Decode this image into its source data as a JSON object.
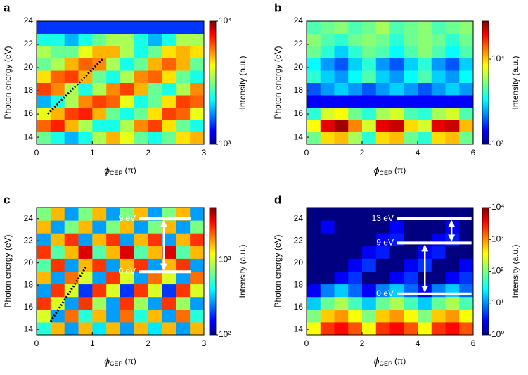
{
  "chart_data": [
    {
      "type": "heatmap",
      "label": "a",
      "ylabel": "Photon energy (eV)",
      "xlabel": {
        "symbol": "ϕ",
        "subscript": "CEP",
        "unit": "(π)"
      },
      "xlim": [
        0,
        3
      ],
      "xticks": [
        0,
        1,
        2,
        3
      ],
      "ylim": [
        13.4,
        24
      ],
      "yticks": [
        14,
        16,
        18,
        20,
        22,
        24
      ],
      "zlim": [
        1000,
        10000
      ],
      "zticks": [
        {
          "value": 1000,
          "label": "10³"
        },
        {
          "value": 10000,
          "label": "10⁴"
        }
      ],
      "log_color": true,
      "colorbar_label": "Intensity (a.u.)",
      "z": [
        [
          3000,
          2500,
          2000,
          2500,
          3500,
          5000,
          4000,
          3000,
          2500,
          3000,
          4500,
          5000
        ],
        [
          6000,
          7000,
          5000,
          3500,
          2500,
          2500,
          3500,
          5500,
          6500,
          4500,
          3000,
          2500
        ],
        [
          4000,
          5000,
          6500,
          7000,
          5000,
          3000,
          2500,
          3000,
          4500,
          6500,
          6000,
          4000
        ],
        [
          2000,
          2500,
          3500,
          5500,
          6500,
          6000,
          4000,
          2500,
          3000,
          4500,
          6500,
          6000
        ],
        [
          6500,
          5500,
          3500,
          2500,
          3500,
          5500,
          6500,
          5000,
          3000,
          2500,
          3500,
          5500
        ],
        [
          4500,
          6000,
          6500,
          5000,
          3000,
          2500,
          3500,
          5500,
          6000,
          4500,
          3000,
          2500
        ],
        [
          3000,
          3500,
          5000,
          6000,
          5500,
          3500,
          2500,
          3000,
          5000,
          6000,
          5000,
          3000
        ],
        [
          3500,
          3000,
          3000,
          4000,
          5000,
          5000,
          3500,
          2500,
          3000,
          4500,
          5000,
          4500
        ],
        [
          2500,
          2500,
          2000,
          2500,
          3000,
          3500,
          3500,
          2500,
          2000,
          2500,
          3500,
          3500
        ],
        [
          1500,
          1500,
          1500,
          1500,
          1500,
          1500,
          1500,
          1500,
          1500,
          1500,
          1500,
          1500
        ]
      ]
    },
    {
      "type": "heatmap",
      "label": "b",
      "ylabel": "Photon energy (eV)",
      "xlabel": {
        "symbol": "ϕ",
        "subscript": "CEP",
        "unit": "(π)"
      },
      "xlim": [
        0,
        6
      ],
      "xticks": [
        0,
        2,
        4,
        6
      ],
      "ylim": [
        13.4,
        24
      ],
      "yticks": [
        14,
        16,
        18,
        20,
        22,
        24
      ],
      "zlim": [
        1000,
        28000
      ],
      "zticks": [
        {
          "value": 1000,
          "label": "10³"
        },
        {
          "value": 10000,
          "label": "10⁴"
        }
      ],
      "log_color": true,
      "colorbar_label": "Intensity (a.u.)",
      "z": [
        [
          5000,
          9000,
          10000,
          6000,
          4000,
          9000,
          10000,
          5000,
          4000,
          9000,
          10000,
          5000
        ],
        [
          8000,
          20000,
          25000,
          12000,
          7000,
          20000,
          22000,
          9000,
          7000,
          20000,
          22000,
          10000
        ],
        [
          4000,
          7000,
          8000,
          5000,
          4000,
          6000,
          7000,
          4500,
          4000,
          6000,
          7000,
          4500
        ],
        [
          1500,
          1500,
          1500,
          1500,
          1500,
          1500,
          1500,
          1500,
          1500,
          1500,
          1500,
          1500
        ],
        [
          2000,
          2500,
          3000,
          2500,
          2000,
          2500,
          3000,
          2500,
          2000,
          2500,
          3000,
          2500
        ],
        [
          4000,
          3000,
          2500,
          3500,
          4500,
          3000,
          2500,
          3500,
          4500,
          3000,
          2500,
          3500
        ],
        [
          3500,
          2500,
          2000,
          3000,
          4000,
          2500,
          2000,
          3000,
          4000,
          2500,
          2000,
          3000
        ],
        [
          5000,
          4000,
          3000,
          4000,
          5000,
          4500,
          3500,
          4500,
          5500,
          4500,
          3500,
          4500
        ],
        [
          5500,
          4500,
          4000,
          5000,
          5500,
          5000,
          4000,
          5000,
          5500,
          5000,
          4000,
          5000
        ],
        [
          4500,
          5000,
          5500,
          4500,
          5000,
          6000,
          4500,
          5000,
          5500,
          4500,
          5000,
          5500
        ]
      ]
    },
    {
      "type": "heatmap",
      "label": "c",
      "ylabel": "Photon energy (eV)",
      "xlabel": {
        "symbol": "ϕ",
        "subscript": "CEP",
        "unit": "(π)"
      },
      "xlim": [
        0,
        3
      ],
      "xticks": [
        0,
        1,
        2,
        3
      ],
      "ylim": [
        13.5,
        25
      ],
      "yticks": [
        14,
        16,
        18,
        20,
        22,
        24
      ],
      "zlim": [
        100,
        5000
      ],
      "zticks": [
        {
          "value": 100,
          "label": "10²"
        },
        {
          "value": 1000,
          "label": "10³"
        }
      ],
      "log_color": true,
      "colorbar_label": "Intensity (a.u.)",
      "annotations": [
        {
          "text": "9 eV",
          "y": 24
        },
        {
          "text": "0 eV",
          "y": 19.2
        }
      ],
      "z": [
        [
          500,
          1500,
          300,
          1500,
          400,
          1500,
          300,
          1500,
          400,
          1500,
          300,
          1500
        ],
        [
          1000,
          300,
          2000,
          500,
          1500,
          300,
          2000,
          500,
          1500,
          300,
          2000,
          500
        ],
        [
          2500,
          1000,
          300,
          2500,
          800,
          300,
          2500,
          800,
          300,
          2500,
          800,
          300
        ],
        [
          300,
          2500,
          1000,
          200,
          2500,
          1000,
          200,
          2500,
          1000,
          200,
          2500,
          1000
        ],
        [
          1500,
          300,
          2000,
          1000,
          300,
          2500,
          1000,
          300,
          2000,
          1000,
          300,
          2000
        ],
        [
          600,
          2500,
          300,
          1500,
          2500,
          300,
          1500,
          2500,
          300,
          1500,
          2500,
          300
        ],
        [
          2500,
          600,
          1500,
          3500,
          600,
          1500,
          3500,
          600,
          1500,
          3500,
          600,
          1500
        ],
        [
          300,
          1500,
          2500,
          300,
          1500,
          2500,
          300,
          1500,
          2500,
          300,
          1500,
          2500
        ],
        [
          1500,
          300,
          700,
          1500,
          300,
          700,
          1500,
          300,
          700,
          1500,
          300,
          700
        ],
        [
          700,
          1500,
          300,
          700,
          1500,
          300,
          700,
          1500,
          300,
          700,
          1500,
          300
        ]
      ]
    },
    {
      "type": "heatmap",
      "label": "d",
      "ylabel": "Photon energy (eV)",
      "xlabel": {
        "symbol": "ϕ",
        "subscript": "CEP",
        "unit": "(π)"
      },
      "xlim": [
        0,
        6
      ],
      "xticks": [
        0,
        2,
        4,
        6
      ],
      "ylim": [
        13.5,
        25
      ],
      "yticks": [
        14,
        16,
        18,
        20,
        22,
        24
      ],
      "zlim": [
        1,
        10000
      ],
      "zticks": [
        {
          "value": 1,
          "label": "10⁰"
        },
        {
          "value": 10,
          "label": "10¹"
        },
        {
          "value": 100,
          "label": "10²"
        },
        {
          "value": 1000,
          "label": "10³"
        },
        {
          "value": 10000,
          "label": "10⁴"
        }
      ],
      "log_color": true,
      "colorbar_label": "Intensity (a.u.)",
      "annotations": [
        {
          "text": "13 eV",
          "y": 24
        },
        {
          "text": "9 eV",
          "y": 21.8
        },
        {
          "text": "0 eV",
          "y": 17.2
        }
      ],
      "z": [
        [
          300,
          2000,
          3000,
          1500,
          300,
          2000,
          3000,
          1500,
          300,
          2000,
          3000,
          1500
        ],
        [
          100,
          500,
          800,
          300,
          100,
          500,
          800,
          300,
          100,
          500,
          800,
          300
        ],
        [
          20,
          80,
          150,
          60,
          20,
          80,
          150,
          60,
          20,
          80,
          150,
          60
        ],
        [
          3,
          10,
          20,
          8,
          3,
          10,
          20,
          8,
          3,
          10,
          20,
          8
        ],
        [
          1,
          1,
          3,
          5,
          1,
          1,
          3,
          5,
          1,
          1,
          3,
          5
        ],
        [
          1,
          1,
          1,
          3,
          5,
          1,
          1,
          3,
          5,
          1,
          1,
          3
        ],
        [
          1,
          1,
          1,
          1,
          3,
          4,
          1,
          1,
          3,
          4,
          1,
          1
        ],
        [
          1,
          1,
          1,
          1,
          1,
          3,
          4,
          1,
          1,
          3,
          4,
          1
        ],
        [
          1,
          3,
          1,
          1,
          1,
          1,
          3,
          1,
          1,
          1,
          3,
          1
        ],
        [
          1,
          1,
          1,
          1,
          1,
          1,
          1,
          1,
          1,
          1,
          1,
          1
        ]
      ]
    }
  ]
}
